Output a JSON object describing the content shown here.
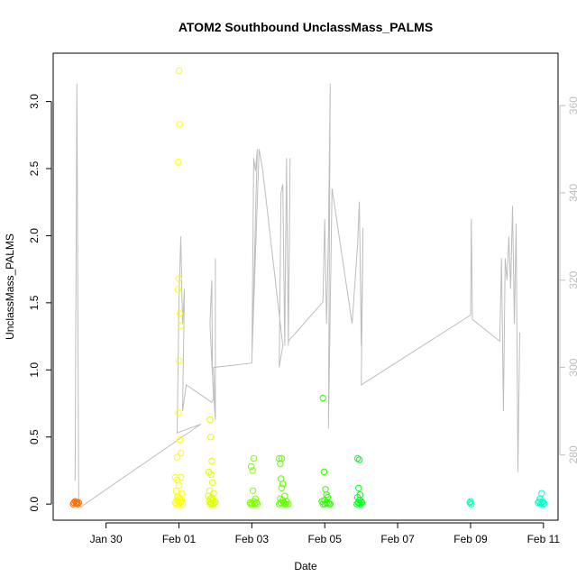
{
  "chart_data": {
    "type": "scatter",
    "title": "ATOM2 Southbound UnclassMass_PALMS",
    "xlabel": "Date",
    "ylabel": "UnclassMass_PALMS",
    "x_ticks": [
      "Jan 30",
      "Feb 01",
      "Feb 03",
      "Feb 05",
      "Feb 07",
      "Feb 09",
      "Feb 11"
    ],
    "x_tick_values": [
      30,
      32,
      34,
      36,
      38,
      40,
      42
    ],
    "xlim": [
      28.55,
      42.4
    ],
    "ylim": [
      -0.12,
      3.36
    ],
    "y_ticks": [
      "0.0",
      "0.5",
      "1.0",
      "1.5",
      "2.0",
      "2.5",
      "3.0"
    ],
    "y_tick_values": [
      0,
      0.5,
      1.0,
      1.5,
      2.0,
      2.5,
      3.0
    ],
    "y2_ticks": [
      "280",
      "300",
      "320",
      "340",
      "360"
    ],
    "y2_tick_values": [
      280,
      300,
      320,
      340,
      360
    ],
    "y2lim": [
      265,
      372
    ],
    "grid": false,
    "series": [
      {
        "color": "#FF6A00",
        "points": [
          [
            29.1,
            0.0
          ],
          [
            29.12,
            0.01
          ],
          [
            29.15,
            0.02
          ],
          [
            29.18,
            0.005
          ],
          [
            29.2,
            0.015
          ],
          [
            29.22,
            0.0
          ],
          [
            29.25,
            0.01
          ]
        ]
      },
      {
        "color": "#FFFF00",
        "points": [
          [
            32.0,
            3.23
          ],
          [
            32.02,
            2.83
          ],
          [
            31.98,
            2.55
          ],
          [
            32.0,
            1.68
          ],
          [
            31.97,
            1.6
          ],
          [
            32.02,
            1.42
          ],
          [
            32.05,
            1.33
          ],
          [
            32.0,
            1.07
          ],
          [
            31.99,
            0.68
          ],
          [
            32.03,
            0.48
          ],
          [
            32.05,
            0.38
          ],
          [
            31.95,
            0.35
          ],
          [
            31.9,
            0.2
          ],
          [
            31.95,
            0.18
          ],
          [
            32.0,
            0.14
          ],
          [
            32.05,
            0.2
          ],
          [
            31.92,
            0.1
          ],
          [
            32.08,
            0.08
          ],
          [
            31.97,
            0.06
          ],
          [
            32.02,
            0.04
          ],
          [
            31.94,
            0.03
          ],
          [
            32.06,
            0.02
          ],
          [
            31.9,
            0.01
          ],
          [
            32.0,
            0.0
          ],
          [
            32.1,
            0.0
          ],
          [
            31.96,
            0.05
          ],
          [
            32.04,
            0.01
          ],
          [
            31.93,
            0.0
          ],
          [
            32.07,
            0.03
          ]
        ]
      },
      {
        "color": "#DFFF00",
        "points": [
          [
            32.85,
            0.63
          ],
          [
            32.87,
            0.5
          ],
          [
            32.9,
            0.32
          ],
          [
            32.82,
            0.24
          ],
          [
            32.88,
            0.22
          ],
          [
            32.92,
            0.16
          ],
          [
            32.84,
            0.1
          ],
          [
            32.95,
            0.08
          ],
          [
            32.8,
            0.06
          ],
          [
            32.9,
            0.05
          ],
          [
            32.86,
            0.04
          ],
          [
            32.93,
            0.03
          ],
          [
            32.83,
            0.02
          ],
          [
            32.98,
            0.01
          ],
          [
            32.85,
            0.0
          ],
          [
            32.9,
            0.0
          ],
          [
            32.95,
            0.0
          ],
          [
            33.0,
            0.02
          ],
          [
            32.88,
            0.01
          ]
        ]
      },
      {
        "color": "#7FFF00",
        "points": [
          [
            34.05,
            0.34
          ],
          [
            33.98,
            0.28
          ],
          [
            34.02,
            0.25
          ],
          [
            34.03,
            0.1
          ],
          [
            34.1,
            0.04
          ],
          [
            34.05,
            0.02
          ],
          [
            33.95,
            0.01
          ],
          [
            34.0,
            0.0
          ],
          [
            34.08,
            0.0
          ],
          [
            34.12,
            0.01
          ],
          [
            34.15,
            0.0
          ],
          [
            33.97,
            0.0
          ]
        ]
      },
      {
        "color": "#5FFF00",
        "points": [
          [
            34.75,
            0.34
          ],
          [
            34.82,
            0.34
          ],
          [
            34.78,
            0.3
          ],
          [
            34.8,
            0.19
          ],
          [
            34.85,
            0.15
          ],
          [
            34.82,
            0.12
          ],
          [
            34.9,
            0.06
          ],
          [
            34.78,
            0.04
          ],
          [
            34.85,
            0.03
          ],
          [
            34.95,
            0.02
          ],
          [
            34.8,
            0.01
          ],
          [
            34.9,
            0.0
          ],
          [
            35.0,
            0.0
          ],
          [
            34.75,
            0.0
          ],
          [
            34.87,
            0.01
          ],
          [
            34.93,
            0.0
          ]
        ]
      },
      {
        "color": "#2FFF00",
        "points": [
          [
            35.95,
            0.79
          ],
          [
            35.98,
            0.24
          ],
          [
            36.02,
            0.11
          ],
          [
            36.05,
            0.07
          ],
          [
            36.08,
            0.05
          ],
          [
            36.0,
            0.03
          ],
          [
            35.92,
            0.02
          ],
          [
            36.1,
            0.01
          ],
          [
            36.0,
            0.0
          ],
          [
            35.95,
            0.0
          ],
          [
            36.12,
            0.0
          ],
          [
            36.05,
            0.01
          ],
          [
            36.15,
            0.0
          ]
        ]
      },
      {
        "color": "#00FF1F",
        "points": [
          [
            36.9,
            0.34
          ],
          [
            36.95,
            0.33
          ],
          [
            36.93,
            0.12
          ],
          [
            36.97,
            0.07
          ],
          [
            36.9,
            0.05
          ],
          [
            36.95,
            0.03
          ],
          [
            37.0,
            0.02
          ],
          [
            36.92,
            0.01
          ],
          [
            36.88,
            0.0
          ],
          [
            36.98,
            0.0
          ],
          [
            37.02,
            0.01
          ]
        ]
      },
      {
        "color": "#00FFB3",
        "points": [
          [
            40.0,
            0.02
          ],
          [
            40.02,
            0.0
          ],
          [
            39.98,
            0.01
          ]
        ]
      },
      {
        "color": "#00FFCF",
        "points": [
          [
            41.95,
            0.08
          ],
          [
            41.9,
            0.04
          ],
          [
            41.98,
            0.02
          ],
          [
            41.85,
            0.01
          ],
          [
            41.92,
            0.0
          ],
          [
            42.0,
            0.0
          ],
          [
            41.88,
            0.02
          ],
          [
            41.96,
            0.01
          ],
          [
            42.02,
            0.005
          ]
        ]
      }
    ],
    "line_series": {
      "color": "#bdbdbd",
      "points": [
        [
          29.15,
          274
        ],
        [
          29.2,
          365
        ],
        [
          29.25,
          270
        ],
        [
          29.3,
          268
        ],
        [
          32.6,
          287
        ],
        [
          31.95,
          285
        ],
        [
          32.0,
          315
        ],
        [
          32.05,
          330
        ],
        [
          32.1,
          310
        ],
        [
          32.15,
          318
        ],
        [
          32.1,
          290
        ],
        [
          32.2,
          296
        ],
        [
          32.9,
          292
        ],
        [
          32.95,
          293
        ],
        [
          32.85,
          310
        ],
        [
          32.9,
          320
        ],
        [
          32.92,
          298
        ],
        [
          33.0,
          288
        ],
        [
          33.0,
          325
        ],
        [
          33.0,
          290
        ],
        [
          32.95,
          300
        ],
        [
          34.0,
          301
        ],
        [
          34.05,
          348
        ],
        [
          34.1,
          345
        ],
        [
          34.15,
          350
        ],
        [
          34.0,
          302
        ],
        [
          34.2,
          350
        ],
        [
          34.3,
          345
        ],
        [
          34.85,
          305
        ],
        [
          34.75,
          300
        ],
        [
          34.8,
          340
        ],
        [
          34.85,
          342
        ],
        [
          34.9,
          305
        ],
        [
          34.95,
          348
        ],
        [
          35.0,
          305
        ],
        [
          35.05,
          348
        ],
        [
          35.0,
          306
        ],
        [
          35.95,
          315
        ],
        [
          36.0,
          334
        ],
        [
          36.05,
          310
        ],
        [
          36.1,
          330
        ],
        [
          36.15,
          365
        ],
        [
          36.1,
          286
        ],
        [
          36.2,
          341
        ],
        [
          36.75,
          310
        ],
        [
          36.9,
          328
        ],
        [
          36.95,
          338
        ],
        [
          37.0,
          305
        ],
        [
          37.05,
          332
        ],
        [
          37.0,
          296
        ],
        [
          40.0,
          312
        ],
        [
          40.02,
          334
        ],
        [
          40.05,
          311
        ],
        [
          40.8,
          306
        ],
        [
          40.85,
          325
        ],
        [
          40.9,
          290
        ],
        [
          40.95,
          325
        ],
        [
          41.0,
          320
        ],
        [
          41.05,
          330
        ],
        [
          41.1,
          318
        ],
        [
          41.15,
          337
        ],
        [
          41.2,
          310
        ],
        [
          41.25,
          333
        ],
        [
          41.3,
          276
        ],
        [
          41.35,
          308
        ]
      ]
    }
  }
}
